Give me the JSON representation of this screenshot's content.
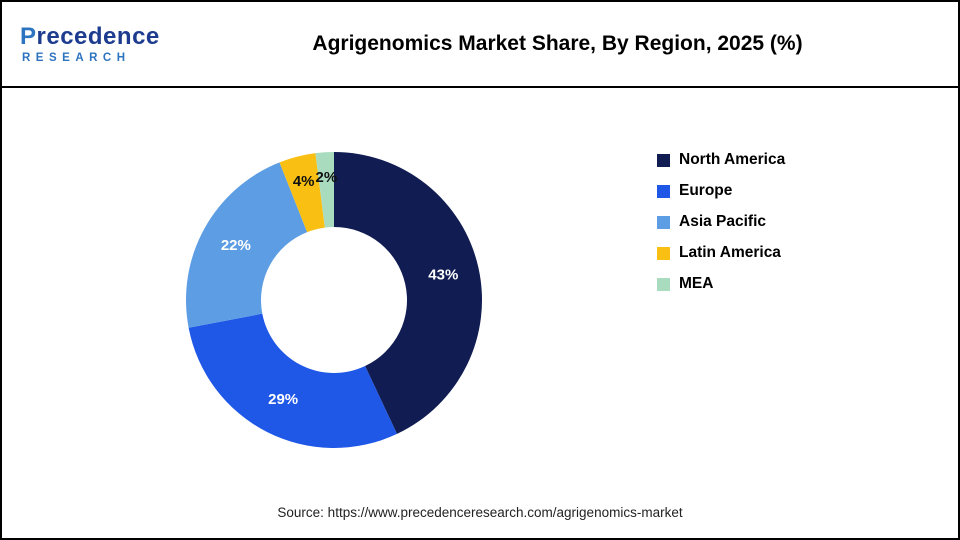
{
  "header": {
    "logo": {
      "line1": "Precedence",
      "line2": "RESEARCH"
    },
    "title": "Agrigenomics Market Share, By Region, 2025 (%)"
  },
  "chart_data": {
    "type": "pie",
    "subtype": "donut",
    "title": "Agrigenomics Market Share, By Region, 2025 (%)",
    "categories": [
      "North America",
      "Europe",
      "Asia Pacific",
      "Latin America",
      "MEA"
    ],
    "values": [
      43,
      29,
      22,
      4,
      2
    ],
    "labels": [
      "43%",
      "29%",
      "22%",
      "4%",
      "2%"
    ],
    "unit": "%",
    "colors": [
      "#101c52",
      "#1f57e6",
      "#5d9de4",
      "#f9c013",
      "#a9dcbe"
    ],
    "legend_position": "right",
    "start_angle_deg": 0,
    "direction": "clockwise"
  },
  "footer": {
    "source": "Source: https://www.precedenceresearch.com/agrigenomics-market"
  }
}
